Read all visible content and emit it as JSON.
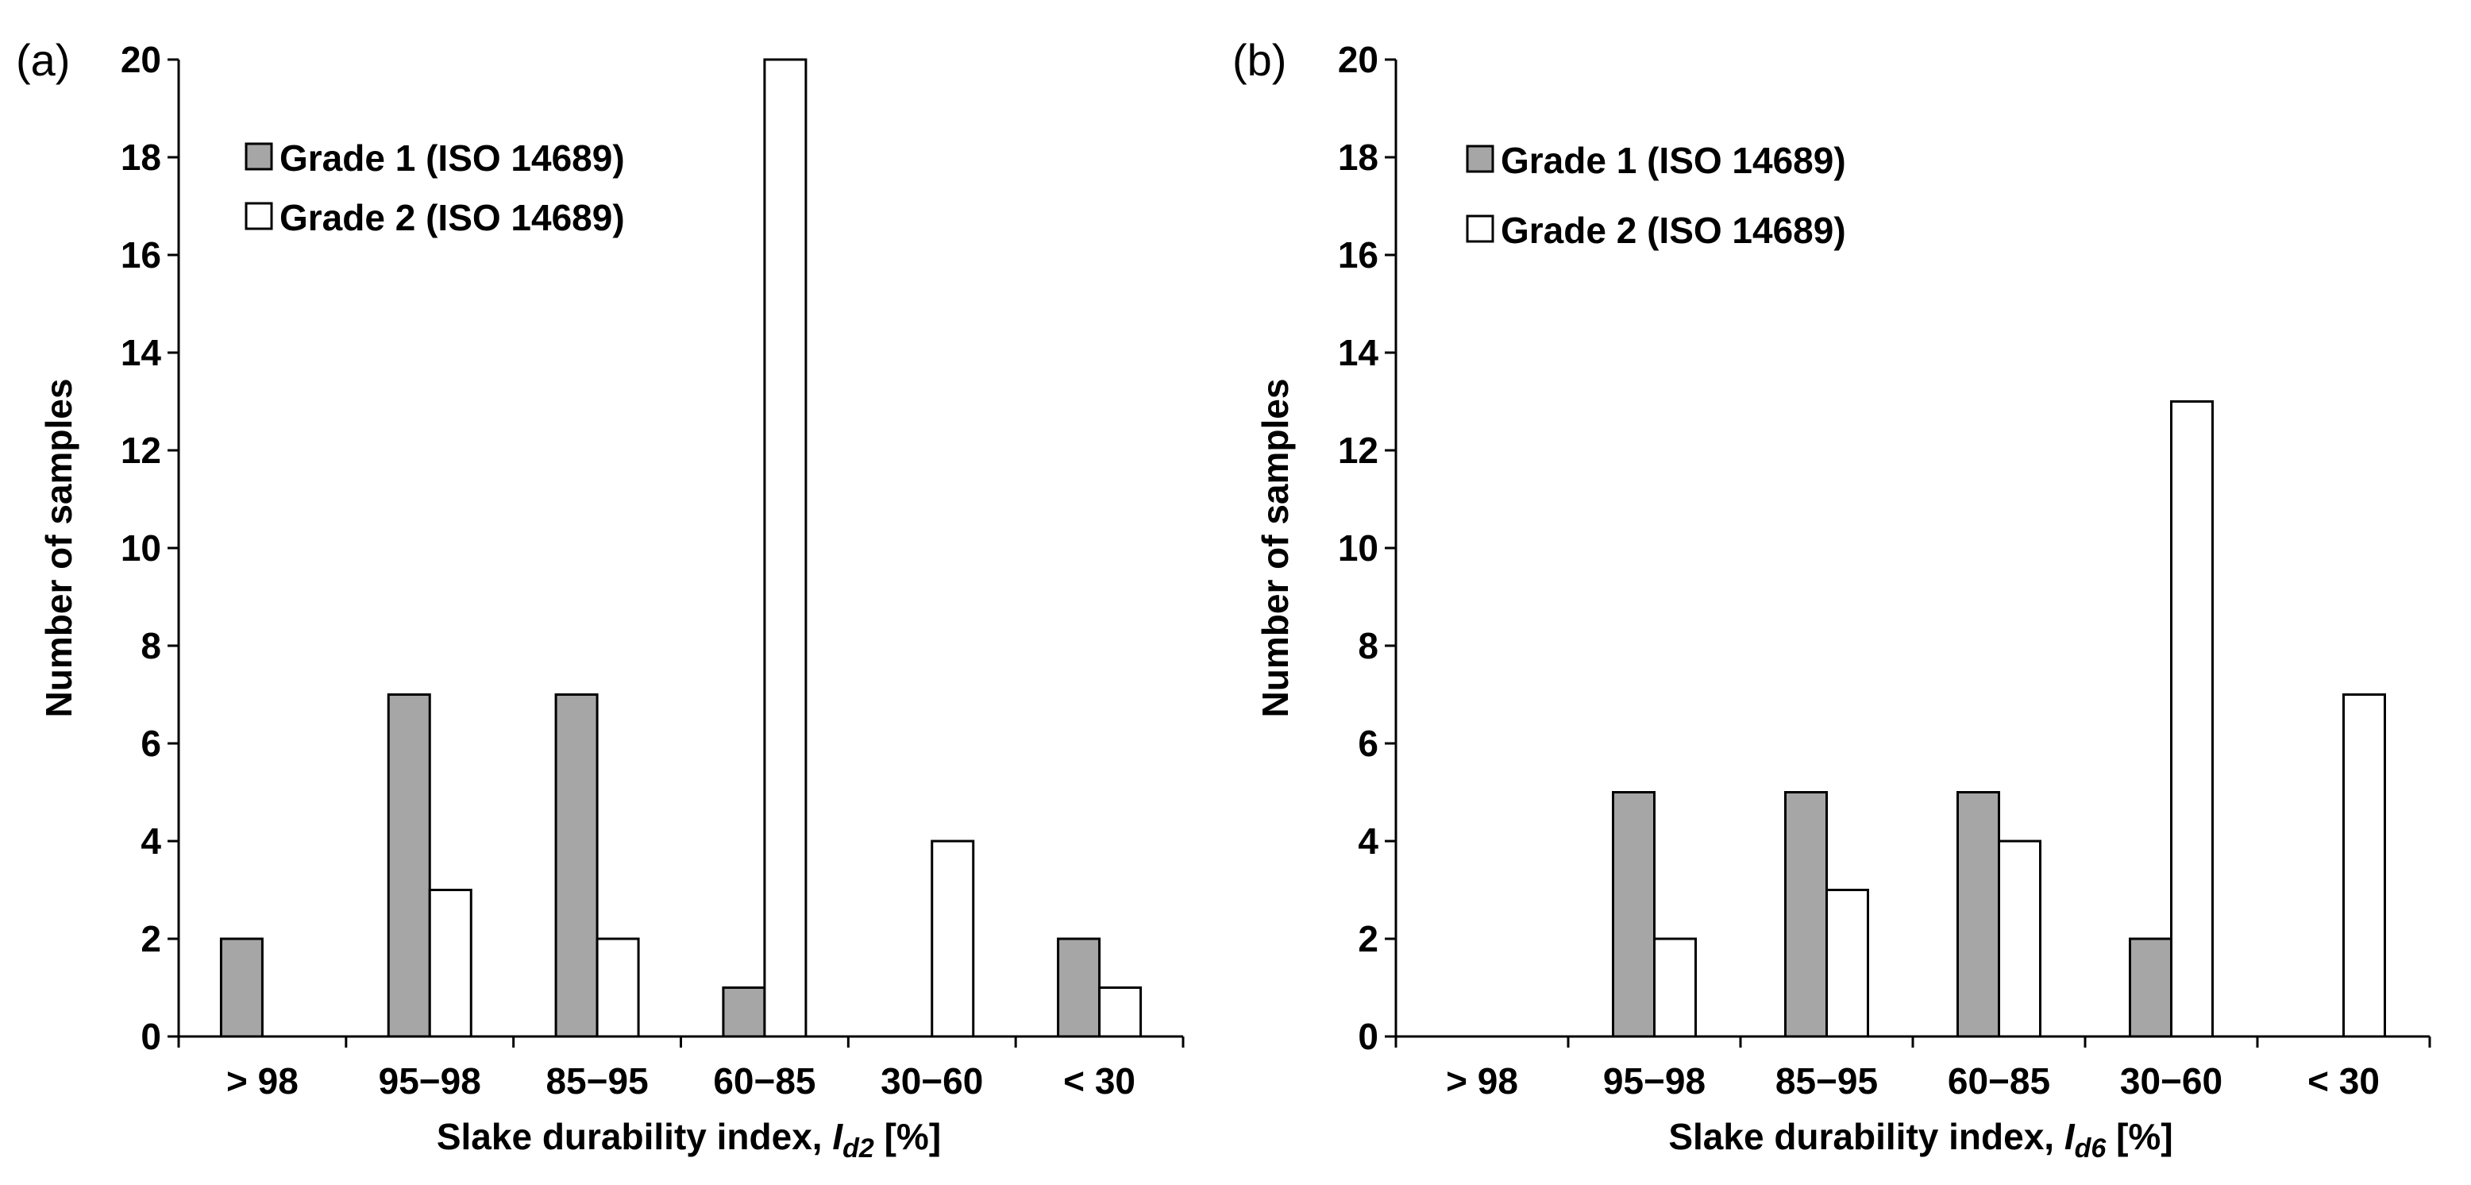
{
  "chart_data": [
    {
      "type": "bar",
      "panel_label": "(a)",
      "categories": [
        "> 98",
        "95−98",
        "85−95",
        "60−85",
        "30−60",
        "< 30"
      ],
      "series": [
        {
          "name": "Grade 1 (ISO 14689)",
          "color": "#a6a6a6",
          "values": [
            2,
            7,
            7,
            1,
            0,
            2
          ]
        },
        {
          "name": "Grade 2 (ISO 14689)",
          "color": "#ffffff",
          "values": [
            0,
            3,
            2,
            20,
            4,
            1
          ]
        }
      ],
      "xlabel_main": "Slake durability index, ",
      "xlabel_symbol": "I",
      "xlabel_subscript": "d2",
      "xlabel_unit": " [%]",
      "ylabel": "Number  of samples",
      "ylim": [
        0,
        20
      ],
      "yticks": [
        0,
        2,
        4,
        6,
        8,
        10,
        12,
        14,
        16,
        18,
        20
      ],
      "legend_position": "top-left"
    },
    {
      "type": "bar",
      "panel_label": "(b)",
      "categories": [
        "> 98",
        "95−98",
        "85−95",
        "60−85",
        "30−60",
        "< 30"
      ],
      "series": [
        {
          "name": "Grade 1 (ISO 14689)",
          "color": "#a6a6a6",
          "values": [
            0,
            5,
            5,
            5,
            2,
            0
          ]
        },
        {
          "name": "Grade 2 (ISO 14689)",
          "color": "#ffffff",
          "values": [
            0,
            2,
            3,
            4,
            13,
            7
          ]
        }
      ],
      "xlabel_main": "Slake durability index, ",
      "xlabel_symbol": "I",
      "xlabel_subscript": "d6",
      "xlabel_unit": " [%]",
      "ylabel": "Number  of samples",
      "ylim": [
        0,
        20
      ],
      "yticks": [
        0,
        2,
        4,
        6,
        8,
        10,
        12,
        14,
        16,
        18,
        20
      ],
      "legend_position": "top-left"
    }
  ]
}
